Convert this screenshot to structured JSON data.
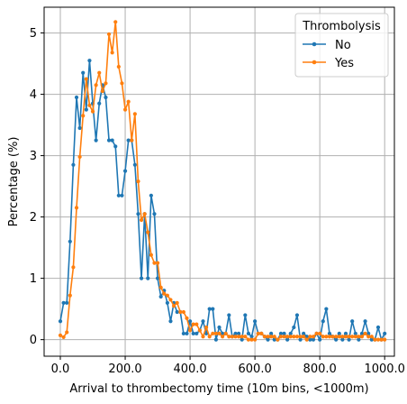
{
  "chart_data": {
    "type": "line",
    "title": "",
    "xlabel": "Arrival to thrombectomy time (10m bins, <1000m)",
    "ylabel": "Percentage (%)",
    "xlim": [
      -50,
      1030
    ],
    "ylim": [
      -0.27,
      5.42
    ],
    "x_ticks": [
      0,
      200,
      400,
      600,
      800,
      1000
    ],
    "x_tick_labels": [
      "0.0",
      "200.0",
      "400.0",
      "600.0",
      "800.0",
      "1000.0"
    ],
    "y_ticks": [
      0,
      1,
      2,
      3,
      4,
      5
    ],
    "y_tick_labels": [
      "0",
      "1",
      "2",
      "3",
      "4",
      "5"
    ],
    "grid": true,
    "legend": {
      "title": "Thrombolysis",
      "position": "top-right"
    },
    "x": [
      0,
      10,
      20,
      30,
      40,
      50,
      60,
      70,
      80,
      90,
      100,
      110,
      120,
      130,
      140,
      150,
      160,
      170,
      180,
      190,
      200,
      210,
      220,
      230,
      240,
      250,
      260,
      270,
      280,
      290,
      300,
      310,
      320,
      330,
      340,
      350,
      360,
      370,
      380,
      390,
      400,
      410,
      420,
      430,
      440,
      450,
      460,
      470,
      480,
      490,
      500,
      510,
      520,
      530,
      540,
      550,
      560,
      570,
      580,
      590,
      600,
      610,
      620,
      630,
      640,
      650,
      660,
      670,
      680,
      690,
      700,
      710,
      720,
      730,
      740,
      750,
      760,
      770,
      780,
      790,
      800,
      810,
      820,
      830,
      840,
      850,
      860,
      870,
      880,
      890,
      900,
      910,
      920,
      930,
      940,
      950,
      960,
      970,
      980,
      990,
      1000
    ],
    "series": [
      {
        "name": "No",
        "color": "#1f77b4",
        "values": [
          0.3,
          0.6,
          0.6,
          1.6,
          2.85,
          3.95,
          3.45,
          4.35,
          3.75,
          4.55,
          3.85,
          3.25,
          3.85,
          4.15,
          3.95,
          3.25,
          3.25,
          3.15,
          2.35,
          2.35,
          2.75,
          3.25,
          3.25,
          2.85,
          2.05,
          1.0,
          2.05,
          1.0,
          2.35,
          2.05,
          1.0,
          0.7,
          0.8,
          0.6,
          0.3,
          0.6,
          0.45,
          0.45,
          0.1,
          0.1,
          0.3,
          0.1,
          0.1,
          0.15,
          0.3,
          0.1,
          0.5,
          0.5,
          0.0,
          0.2,
          0.1,
          0.1,
          0.4,
          0.05,
          0.1,
          0.1,
          0.0,
          0.4,
          0.1,
          0.05,
          0.3,
          0.1,
          0.1,
          0.05,
          0.0,
          0.1,
          0.0,
          0.0,
          0.1,
          0.1,
          0.0,
          0.1,
          0.2,
          0.4,
          0.0,
          0.1,
          0.05,
          0.0,
          0.0,
          0.1,
          0.0,
          0.3,
          0.5,
          0.1,
          0.05,
          0.0,
          0.1,
          0.0,
          0.1,
          0.0,
          0.3,
          0.1,
          0.0,
          0.1,
          0.3,
          0.1,
          0.0,
          0.0,
          0.2,
          0.0,
          0.1
        ]
      },
      {
        "name": "Yes",
        "color": "#ff7f0e",
        "values": [
          0.07,
          0.04,
          0.12,
          0.72,
          1.18,
          2.15,
          2.98,
          3.65,
          4.25,
          3.82,
          3.72,
          4.15,
          4.35,
          4.05,
          4.18,
          4.98,
          4.68,
          5.18,
          4.45,
          4.18,
          3.75,
          3.88,
          3.25,
          3.68,
          2.58,
          1.95,
          2.05,
          1.75,
          1.38,
          1.25,
          1.25,
          0.85,
          0.75,
          0.72,
          0.65,
          0.55,
          0.6,
          0.45,
          0.45,
          0.35,
          0.15,
          0.25,
          0.25,
          0.15,
          0.05,
          0.2,
          0.05,
          0.1,
          0.1,
          0.1,
          0.05,
          0.1,
          0.05,
          0.05,
          0.05,
          0.05,
          0.05,
          0.05,
          0.0,
          0.0,
          0.0,
          0.1,
          0.1,
          0.05,
          0.05,
          0.05,
          0.05,
          0.0,
          0.05,
          0.05,
          0.05,
          0.05,
          0.05,
          0.05,
          0.05,
          0.05,
          0.0,
          0.05,
          0.05,
          0.1,
          0.1,
          0.05,
          0.05,
          0.05,
          0.05,
          0.05,
          0.05,
          0.05,
          0.05,
          0.05,
          0.05,
          0.05,
          0.05,
          0.05,
          0.1,
          0.05,
          0.05,
          0.0,
          0.0,
          0.0,
          0.0
        ]
      }
    ]
  }
}
